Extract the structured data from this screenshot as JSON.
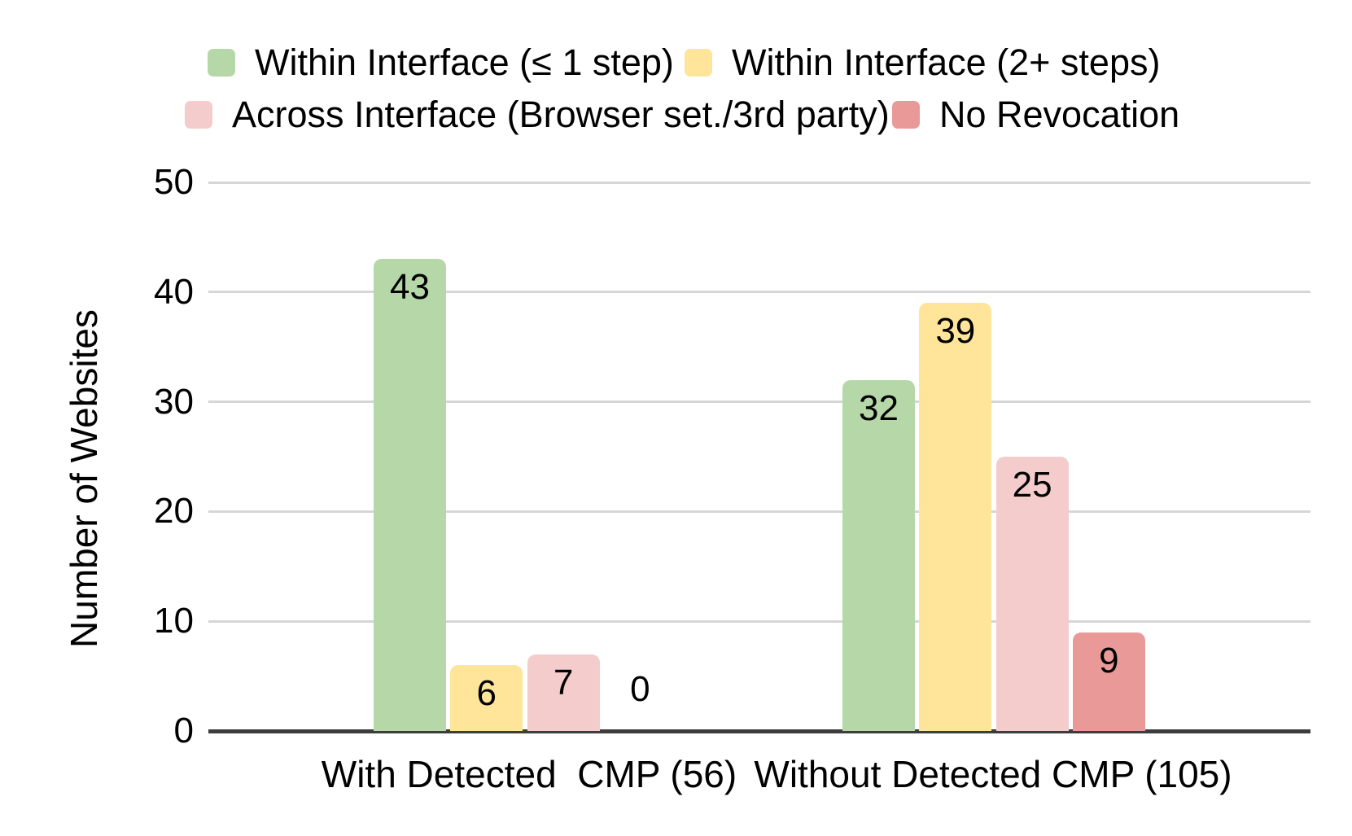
{
  "chart_data": {
    "type": "bar",
    "title": "",
    "xlabel": "",
    "ylabel": "Number of Websites",
    "ylim": [
      0,
      50
    ],
    "yticks": [
      0,
      10,
      20,
      30,
      40,
      50
    ],
    "grid": true,
    "legend_position": "top",
    "categories": [
      "With Detected  CMP (56)",
      "Without Detected CMP (105)"
    ],
    "series": [
      {
        "name": "Within Interface (≤ 1 step)",
        "color": "#b6d7a8",
        "values": [
          43,
          32
        ]
      },
      {
        "name": "Within Interface (2+ steps)",
        "color": "#ffe599",
        "values": [
          6,
          39
        ]
      },
      {
        "name": "Across Interface (Browser set./3rd party)",
        "color": "#f4cccc",
        "values": [
          7,
          25
        ]
      },
      {
        "name": "No Revocation",
        "color": "#ea9999",
        "values": [
          0,
          9
        ]
      }
    ],
    "colors": {
      "gridline": "#d6d6d6",
      "axis_line": "#3d3d3d",
      "text": "#000000",
      "background": "#ffffff"
    }
  }
}
